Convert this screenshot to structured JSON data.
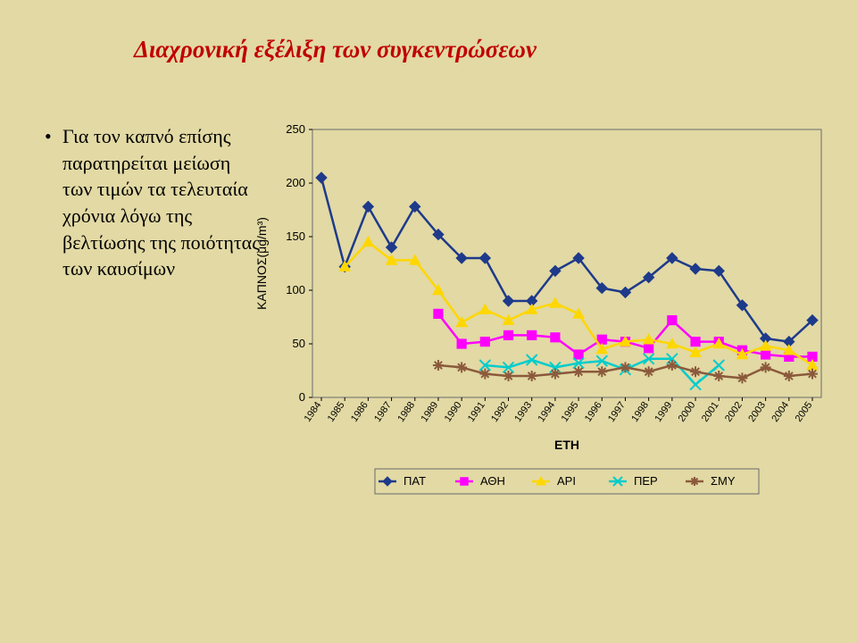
{
  "page": {
    "background_color": "#e2d9a4"
  },
  "title": {
    "text": "Διαχρονική εξέλιξη των συγκεντρώσεων",
    "color": "#c00000"
  },
  "bullet": {
    "text": "Για τον καπνό επίσης παρατηρείται μείωση  των τιμών τα τελευταία χρόνια λόγω της βελτίωσης της ποιότητας των καυσίμων",
    "color": "#000000"
  },
  "chart": {
    "type": "line",
    "plot_background": "#e2d9a4",
    "border_color": "#6b6b6b",
    "grid": false,
    "y_axis": {
      "label": "ΚΑΠΝΟΣ(μg/m³)",
      "min": 0,
      "max": 250,
      "step": 50,
      "ticks": [
        0,
        50,
        100,
        150,
        200,
        250
      ]
    },
    "x_axis": {
      "label": "ΕΤΗ",
      "categories": [
        "1984",
        "1985",
        "1986",
        "1987",
        "1988",
        "1989",
        "1990",
        "1991",
        "1992",
        "1993",
        "1994",
        "1995",
        "1996",
        "1997",
        "1998",
        "1999",
        "2000",
        "2001",
        "2002",
        "2003",
        "2004",
        "2005"
      ]
    },
    "series": [
      {
        "name": "ΠΑΤ",
        "color": "#1e3a8a",
        "marker": "diamond",
        "data": [
          205,
          122,
          178,
          140,
          178,
          152,
          130,
          130,
          90,
          90,
          118,
          130,
          102,
          98,
          112,
          130,
          120,
          118,
          86,
          55,
          52,
          72
        ]
      },
      {
        "name": "ΑΘΗ",
        "color": "#ff00ff",
        "marker": "square",
        "data": [
          null,
          null,
          null,
          null,
          null,
          78,
          50,
          52,
          58,
          58,
          56,
          40,
          54,
          52,
          46,
          72,
          52,
          52,
          44,
          40,
          38,
          38
        ]
      },
      {
        "name": "ΑΡΙ",
        "color": "#ffd700",
        "marker": "triangle",
        "data": [
          null,
          122,
          145,
          128,
          128,
          100,
          70,
          82,
          72,
          82,
          88,
          78,
          45,
          52,
          54,
          50,
          42,
          50,
          40,
          48,
          44,
          30
        ]
      },
      {
        "name": "ΠΕΡ",
        "color": "#00cccc",
        "marker": "x",
        "data": [
          null,
          null,
          null,
          null,
          null,
          null,
          null,
          30,
          28,
          35,
          28,
          32,
          34,
          26,
          36,
          36,
          12,
          30,
          null,
          null,
          null,
          null
        ]
      },
      {
        "name": "ΣΜΥ",
        "color": "#8b5a3c",
        "marker": "asterisk",
        "data": [
          null,
          null,
          null,
          null,
          null,
          30,
          28,
          22,
          20,
          20,
          22,
          24,
          24,
          28,
          24,
          30,
          24,
          20,
          18,
          28,
          20,
          22
        ]
      }
    ],
    "legend": {
      "position": "bottom",
      "background": "#e2d9a4",
      "border_color": "#6b6b6b"
    },
    "line_width": 2.5,
    "marker_size": 6
  }
}
